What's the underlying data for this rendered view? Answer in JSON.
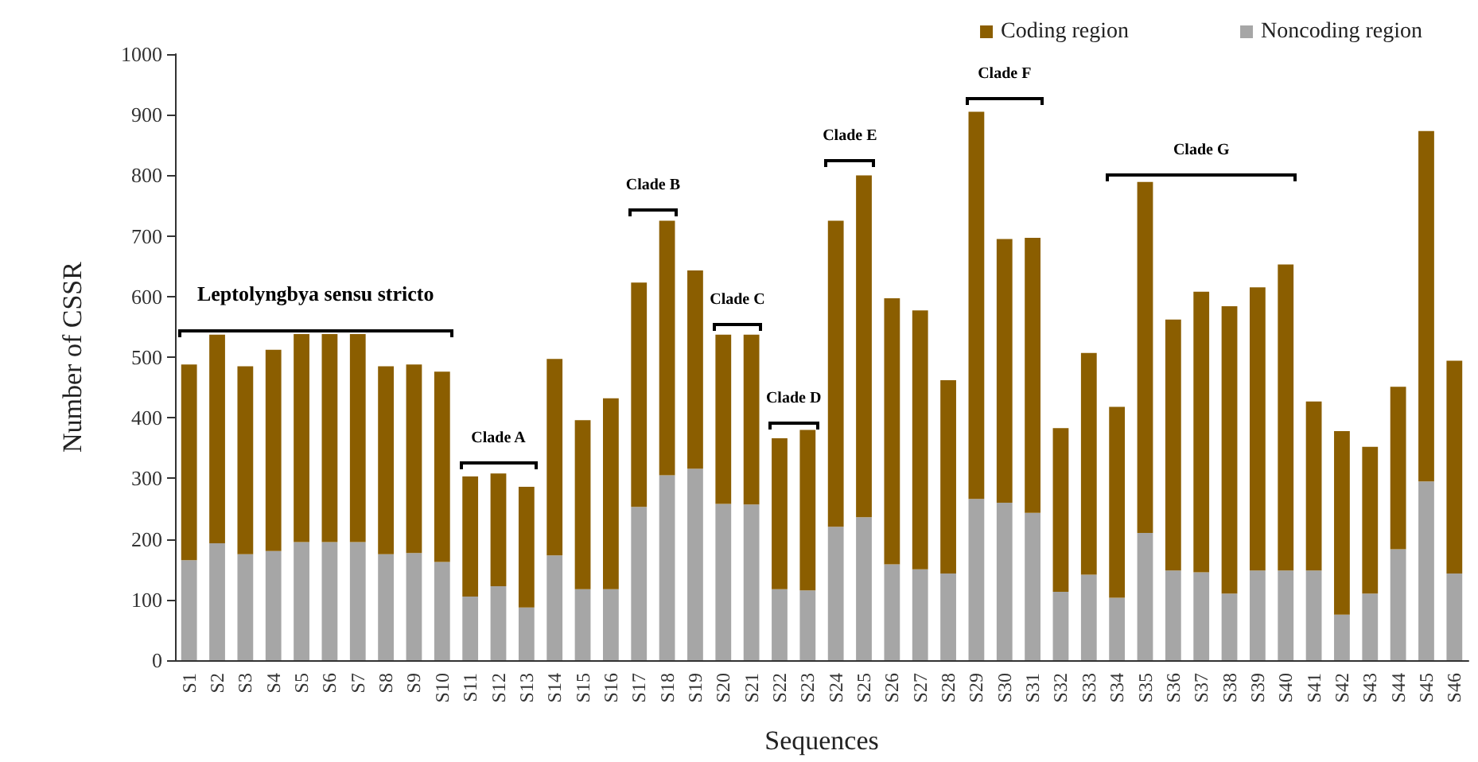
{
  "chart_data": {
    "type": "bar",
    "stacked": true,
    "xlabel": "Sequences",
    "ylabel": "Number of CSSR",
    "categories": [
      "S1",
      "S2",
      "S3",
      "S4",
      "S5",
      "S6",
      "S7",
      "S8",
      "S9",
      "S10",
      "S11",
      "S12",
      "S13",
      "S14",
      "S15",
      "S16",
      "S17",
      "S18",
      "S19",
      "S20",
      "S21",
      "S22",
      "S23",
      "S24",
      "S25",
      "S26",
      "S27",
      "S28",
      "S29",
      "S30",
      "S31",
      "S32",
      "S33",
      "S34",
      "S35",
      "S36",
      "S37",
      "S38",
      "S39",
      "S40",
      "S41",
      "S42",
      "S43",
      "S44",
      "S45",
      "S46"
    ],
    "series": [
      {
        "name": "Noncoding region",
        "color": "#a6a6a6",
        "values": [
          165,
          193,
          175,
          180,
          195,
          195,
          195,
          175,
          177,
          162,
          105,
          122,
          87,
          173,
          117,
          117,
          253,
          305,
          316,
          258,
          257,
          117,
          115,
          220,
          236,
          158,
          150,
          143,
          266,
          260,
          243,
          113,
          141,
          103,
          210,
          148,
          145,
          110,
          148,
          148,
          148,
          75,
          110,
          183,
          295,
          143
        ]
      },
      {
        "name": "Coding region",
        "color": "#8b5e00",
        "values": [
          323,
          344,
          310,
          332,
          343,
          343,
          343,
          310,
          311,
          314,
          198,
          186,
          199,
          324,
          279,
          315,
          370,
          420,
          327,
          279,
          280,
          249,
          265,
          505,
          564,
          439,
          427,
          319,
          639,
          435,
          454,
          270,
          366,
          315,
          579,
          414,
          463,
          474,
          467,
          505,
          279,
          303,
          242,
          268,
          578,
          351
        ]
      }
    ],
    "ylim": [
      0,
      1000
    ],
    "yticks": [
      0,
      100,
      200,
      300,
      400,
      500,
      600,
      700,
      800,
      900,
      1000
    ],
    "grid": false,
    "legend": "top right",
    "annotations": [
      "Leptolyngbya sensu stricto",
      "Clade A",
      "Clade B",
      "Clade C",
      "Clade D",
      "Clade E",
      "Clade F",
      "Clade G"
    ]
  }
}
